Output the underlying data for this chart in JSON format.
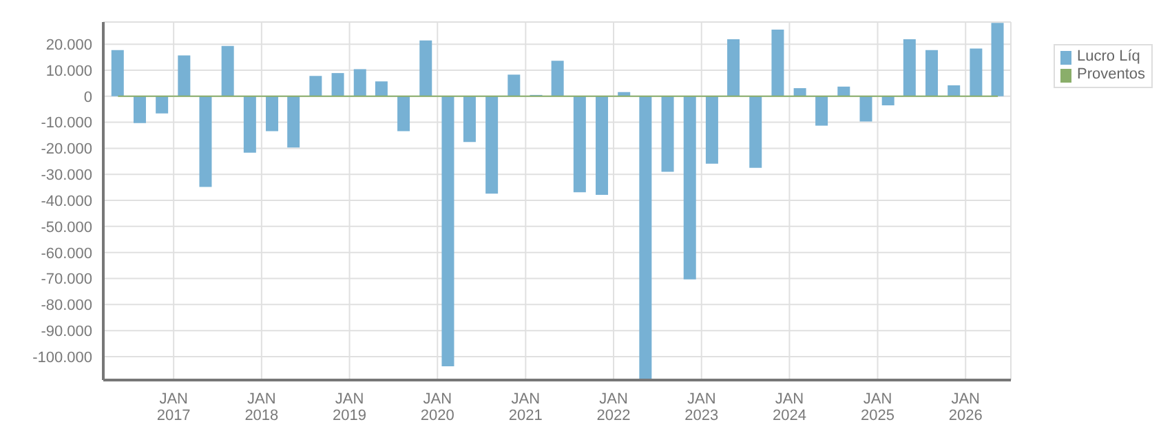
{
  "chart_data": {
    "type": "bar",
    "x": [
      "2016-05-15",
      "2016-08-15",
      "2016-11-15",
      "2017-02-15",
      "2017-05-15",
      "2017-08-15",
      "2017-11-15",
      "2018-02-15",
      "2018-05-15",
      "2018-08-15",
      "2018-11-15",
      "2019-02-15",
      "2019-05-15",
      "2019-08-15",
      "2019-11-15",
      "2020-02-15",
      "2020-05-15",
      "2020-08-15",
      "2020-11-15",
      "2021-02-15",
      "2021-05-15",
      "2021-08-15",
      "2021-11-15",
      "2022-02-15",
      "2022-05-15",
      "2022-08-15",
      "2022-11-15",
      "2023-02-15",
      "2023-05-15",
      "2023-08-15",
      "2023-11-15",
      "2024-02-15",
      "2024-05-15",
      "2024-08-15",
      "2024-11-15",
      "2025-02-15",
      "2025-05-15",
      "2025-08-15",
      "2025-11-15",
      "2026-02-15",
      "2026-05-15"
    ],
    "series": [
      {
        "name": "Lucro Líq",
        "color": "#77b1d4",
        "values": [
          17700,
          -10300,
          -6600,
          15700,
          -34800,
          19300,
          -21700,
          -13400,
          -19700,
          7800,
          8900,
          10400,
          5700,
          -13400,
          21400,
          -103700,
          -17600,
          -37400,
          8300,
          500,
          13600,
          -36900,
          -37900,
          1600,
          -109000,
          -29000,
          -70300,
          -25900,
          21900,
          -27500,
          25600,
          3100,
          -11300,
          3700,
          -9700,
          -3500,
          21900,
          17700,
          4200,
          18300,
          28200
        ]
      },
      {
        "name": "Proventos",
        "type": "line",
        "color": "#8aae6a",
        "values": [
          0,
          0,
          0,
          0,
          0,
          0,
          0,
          0,
          0,
          0,
          0,
          0,
          0,
          0,
          0,
          0,
          0,
          0,
          0,
          0,
          0,
          0,
          0,
          0,
          0,
          0,
          0,
          0,
          0,
          0,
          0,
          0,
          0,
          0,
          0,
          0,
          0,
          0,
          0,
          0,
          0
        ]
      }
    ],
    "xlim": [
      "2016-03-15",
      "2026-07-08"
    ],
    "xticks": [
      {
        "value": "2017-01-01",
        "label": "JAN\n2017"
      },
      {
        "value": "2018-01-01",
        "label": "JAN\n2018"
      },
      {
        "value": "2019-01-01",
        "label": "JAN\n2019"
      },
      {
        "value": "2020-01-01",
        "label": "JAN\n2020"
      },
      {
        "value": "2021-01-01",
        "label": "JAN\n2021"
      },
      {
        "value": "2022-01-01",
        "label": "JAN\n2022"
      },
      {
        "value": "2023-01-01",
        "label": "JAN\n2023"
      },
      {
        "value": "2024-01-01",
        "label": "JAN\n2024"
      },
      {
        "value": "2025-01-01",
        "label": "JAN\n2025"
      },
      {
        "value": "2026-01-01",
        "label": "JAN\n2026"
      }
    ],
    "ylim": [
      -109000,
      28500
    ],
    "yticks": [
      {
        "value": -100000,
        "label": "-100.000"
      },
      {
        "value": -90000,
        "label": "-90.000"
      },
      {
        "value": -80000,
        "label": "-80.000"
      },
      {
        "value": -70000,
        "label": "-70.000"
      },
      {
        "value": -60000,
        "label": "-60.000"
      },
      {
        "value": -50000,
        "label": "-50.000"
      },
      {
        "value": -40000,
        "label": "-40.000"
      },
      {
        "value": -30000,
        "label": "-30.000"
      },
      {
        "value": -20000,
        "label": "-20.000"
      },
      {
        "value": -10000,
        "label": "-10.000"
      },
      0,
      {
        "value": 10000,
        "label": "10.000"
      },
      {
        "value": 20000,
        "label": "20.000"
      }
    ],
    "grid": true,
    "legend": "top right"
  }
}
